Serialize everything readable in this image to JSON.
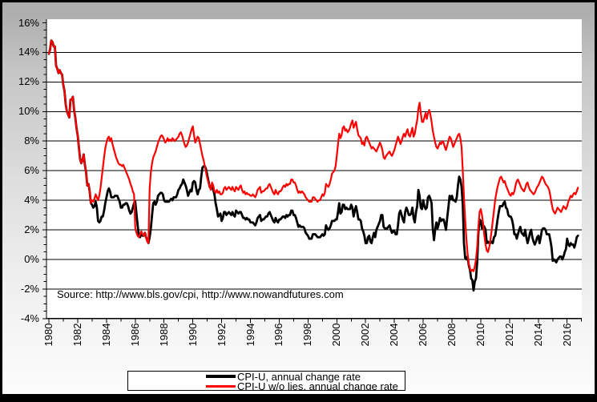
{
  "colors": {
    "series_black": "#000000",
    "series_red": "#ff0000",
    "plot_background": "#ffffff",
    "grid": "#000000",
    "frame_border": "#000000",
    "margin_gradient_top": "#aaaaaa",
    "margin_gradient_bottom": "#fdfdfd"
  },
  "source_note": "Source: http://www.bls.gov/cpi, http://www.nowandfutures.com",
  "chart_data": {
    "type": "line",
    "title": "",
    "xlabel": "",
    "ylabel": "",
    "xlim": [
      1980,
      2017.1
    ],
    "ylim": [
      -4,
      16
    ],
    "grid": "horizontal-only",
    "legend_position": "bottom-center",
    "x_tick_labels": [
      "1980",
      "1982",
      "1984",
      "1986",
      "1988",
      "1990",
      "1992",
      "1994",
      "1996",
      "1998",
      "2000",
      "2002",
      "2004",
      "2006",
      "2008",
      "2010",
      "2012",
      "2014",
      "2016"
    ],
    "x_tick_years": [
      1980,
      1982,
      1984,
      1986,
      1988,
      1990,
      1992,
      1994,
      1996,
      1998,
      2000,
      2002,
      2004,
      2006,
      2008,
      2010,
      2012,
      2014,
      2016
    ],
    "x_minor_tick_every_years": 1,
    "y_tick_labels": [
      "16%",
      "14%",
      "12%",
      "10%",
      "8%",
      "6%",
      "4%",
      "2%",
      "0%",
      "-2%",
      "-4%"
    ],
    "y_tick_values": [
      16,
      14,
      12,
      10,
      8,
      6,
      4,
      2,
      0,
      -2,
      -4
    ],
    "y_minor_tick_every": 0.5,
    "x_start_year": 1980,
    "points_per_year": 12,
    "legend": [
      {
        "label": "CPI-U, annual change rate",
        "color": "#000000"
      },
      {
        "label": "CPI-U w/o lies, annual change rate",
        "color": "#ff0000"
      }
    ],
    "series": [
      {
        "name": "CPI-U, annual change rate",
        "color": "#000000",
        "stroke_width": 2.8,
        "values": [
          13.9,
          14.2,
          14.8,
          14.7,
          14.4,
          14.4,
          13.1,
          12.9,
          12.6,
          12.8,
          12.6,
          12.5,
          11.8,
          11.4,
          10.5,
          10.0,
          9.8,
          9.6,
          10.8,
          10.8,
          11.0,
          10.1,
          9.6,
          8.9,
          8.4,
          7.6,
          6.8,
          6.5,
          6.7,
          7.1,
          6.4,
          5.9,
          5.0,
          5.1,
          4.6,
          3.8,
          3.7,
          3.5,
          3.6,
          3.9,
          3.5,
          2.6,
          2.5,
          2.6,
          2.9,
          2.9,
          3.3,
          3.8,
          4.2,
          4.6,
          4.8,
          4.6,
          4.2,
          4.2,
          4.2,
          4.3,
          4.3,
          4.3,
          4.1,
          3.9,
          3.5,
          3.5,
          3.7,
          3.7,
          3.8,
          3.8,
          3.6,
          3.3,
          3.1,
          3.2,
          3.5,
          3.8,
          3.9,
          3.1,
          2.3,
          1.6,
          1.5,
          1.8,
          1.6,
          1.6,
          1.8,
          1.5,
          1.3,
          1.1,
          1.5,
          2.1,
          3.0,
          3.8,
          3.9,
          3.7,
          3.9,
          4.3,
          4.4,
          4.5,
          4.5,
          4.4,
          4.0,
          3.9,
          3.9,
          3.9,
          3.9,
          4.0,
          4.1,
          4.0,
          4.2,
          4.2,
          4.2,
          4.4,
          4.7,
          4.8,
          5.0,
          5.1,
          5.4,
          5.2,
          5.0,
          4.7,
          4.3,
          4.5,
          4.7,
          4.6,
          5.2,
          5.3,
          5.2,
          4.7,
          4.4,
          4.7,
          4.8,
          5.6,
          6.2,
          6.3,
          6.3,
          6.1,
          5.7,
          5.3,
          4.9,
          4.9,
          5.0,
          4.7,
          4.4,
          3.8,
          3.4,
          2.9,
          3.0,
          3.1,
          2.6,
          2.8,
          3.2,
          3.2,
          3.0,
          3.1,
          3.2,
          3.1,
          3.0,
          3.2,
          3.0,
          2.9,
          3.3,
          3.2,
          3.1,
          3.2,
          3.2,
          3.0,
          2.8,
          2.8,
          2.7,
          2.8,
          2.7,
          2.7,
          2.5,
          2.5,
          2.5,
          2.4,
          2.3,
          2.5,
          2.8,
          2.9,
          3.0,
          2.6,
          2.7,
          2.7,
          2.8,
          2.9,
          2.9,
          3.1,
          3.2,
          3.0,
          2.8,
          2.6,
          2.5,
          2.8,
          2.6,
          2.5,
          2.7,
          2.7,
          2.8,
          2.9,
          2.9,
          2.8,
          3.0,
          2.9,
          3.0,
          3.0,
          3.3,
          3.3,
          3.0,
          3.0,
          2.8,
          2.5,
          2.2,
          2.3,
          2.2,
          2.2,
          2.2,
          2.1,
          1.8,
          1.7,
          1.6,
          1.4,
          1.4,
          1.4,
          1.7,
          1.7,
          1.7,
          1.6,
          1.5,
          1.5,
          1.5,
          1.6,
          1.7,
          1.6,
          1.7,
          2.3,
          2.1,
          2.0,
          2.1,
          2.3,
          2.6,
          2.6,
          2.6,
          2.7,
          2.7,
          3.2,
          3.8,
          3.1,
          3.2,
          3.7,
          3.7,
          3.4,
          3.5,
          3.4,
          3.4,
          3.4,
          3.7,
          3.5,
          2.9,
          3.3,
          3.6,
          3.2,
          2.7,
          2.7,
          2.6,
          2.1,
          1.9,
          1.6,
          1.1,
          1.1,
          1.5,
          1.6,
          1.2,
          1.1,
          1.5,
          1.8,
          1.5,
          2.0,
          2.2,
          2.4,
          2.6,
          3.0,
          3.0,
          2.2,
          2.1,
          2.1,
          2.1,
          2.2,
          2.3,
          2.0,
          1.8,
          1.9,
          1.9,
          1.7,
          1.7,
          2.3,
          3.1,
          3.3,
          3.0,
          2.7,
          2.5,
          3.2,
          3.5,
          3.3,
          3.0,
          3.0,
          3.1,
          3.5,
          2.8,
          2.5,
          3.2,
          3.6,
          4.7,
          4.3,
          3.5,
          3.4,
          4.0,
          3.6,
          3.4,
          3.5,
          4.2,
          4.3,
          4.1,
          3.8,
          2.1,
          1.3,
          2.0,
          2.5,
          2.1,
          2.4,
          2.8,
          2.6,
          2.7,
          2.7,
          2.4,
          2.0,
          2.8,
          3.5,
          4.3,
          4.1,
          4.3,
          4.0,
          4.0,
          3.9,
          4.2,
          5.0,
          5.6,
          5.4,
          4.9,
          3.7,
          1.1,
          0.1,
          0.0,
          0.2,
          -0.4,
          -0.7,
          -1.3,
          -1.4,
          -2.1,
          -1.5,
          -1.3,
          -0.2,
          1.8,
          2.7,
          2.6,
          2.1,
          2.3,
          2.2,
          2.0,
          1.1,
          1.2,
          1.1,
          1.1,
          1.2,
          1.1,
          1.5,
          1.6,
          2.1,
          2.7,
          3.2,
          3.6,
          3.6,
          3.6,
          3.8,
          3.9,
          3.5,
          3.4,
          3.0,
          2.9,
          2.9,
          2.7,
          2.3,
          1.7,
          1.7,
          1.4,
          1.7,
          2.0,
          2.2,
          1.8,
          1.7,
          1.6,
          2.0,
          1.5,
          1.1,
          1.4,
          1.8,
          2.0,
          1.5,
          1.2,
          1.0,
          1.2,
          1.5,
          1.6,
          1.1,
          1.5,
          2.0,
          2.1,
          2.1,
          2.0,
          1.7,
          1.7,
          1.7,
          1.3,
          0.8,
          -0.1,
          0.0,
          -0.1,
          -0.2,
          0.0,
          0.1,
          0.2,
          0.2,
          0.0,
          0.2,
          0.5,
          0.7,
          1.4,
          1.0,
          0.9,
          1.1,
          1.0,
          1.0,
          0.8,
          1.1,
          1.5,
          1.6
        ]
      },
      {
        "name": "CPI-U w/o lies, annual change rate",
        "color": "#ff0000",
        "stroke_width": 2.2,
        "values": [
          13.9,
          14.2,
          14.8,
          14.7,
          14.4,
          14.4,
          13.1,
          12.9,
          12.6,
          12.8,
          12.6,
          12.5,
          11.8,
          11.4,
          10.5,
          10.0,
          9.8,
          9.6,
          10.8,
          10.8,
          11.0,
          10.1,
          9.6,
          8.9,
          8.4,
          7.6,
          6.8,
          6.5,
          6.7,
          7.1,
          6.4,
          5.9,
          5.0,
          5.1,
          4.6,
          3.8,
          4.0,
          3.9,
          4.1,
          4.4,
          4.2,
          4.0,
          4.3,
          4.8,
          5.5,
          6.2,
          6.9,
          7.5,
          7.9,
          8.2,
          8.3,
          8.0,
          8.2,
          7.8,
          7.5,
          7.2,
          6.9,
          6.7,
          6.5,
          6.4,
          6.4,
          6.3,
          6.4,
          6.2,
          6.0,
          5.8,
          5.6,
          5.4,
          5.1,
          4.9,
          4.6,
          4.4,
          2.1,
          1.8,
          1.6,
          1.5,
          1.7,
          1.9,
          1.7,
          1.6,
          1.8,
          1.5,
          1.2,
          1.1,
          4.8,
          5.9,
          6.5,
          6.9,
          7.1,
          7.3,
          7.6,
          7.9,
          8.1,
          8.3,
          8.4,
          8.3,
          8.1,
          7.9,
          8.0,
          8.2,
          8.0,
          8.1,
          8.0,
          8.2,
          8.1,
          8.0,
          8.1,
          8.2,
          8.3,
          8.5,
          8.6,
          8.4,
          8.1,
          7.8,
          7.6,
          7.7,
          7.9,
          8.2,
          8.5,
          8.8,
          9.0,
          8.4,
          7.9,
          8.1,
          8.3,
          8.2,
          7.8,
          7.4,
          7.0,
          6.7,
          6.3,
          5.9,
          5.5,
          5.2,
          4.9,
          4.7,
          5.2,
          5.0,
          4.6,
          4.5,
          4.7,
          4.5,
          4.6,
          4.4,
          4.4,
          4.5,
          4.8,
          4.9,
          4.7,
          4.8,
          4.9,
          4.8,
          4.7,
          4.9,
          4.7,
          4.6,
          4.9,
          4.8,
          4.7,
          4.9,
          5.0,
          4.7,
          4.5,
          4.6,
          4.4,
          4.5,
          4.4,
          4.4,
          4.3,
          4.3,
          4.4,
          4.3,
          4.2,
          4.4,
          4.7,
          4.8,
          4.9,
          4.5,
          4.6,
          4.6,
          4.7,
          4.8,
          4.8,
          5.0,
          5.1,
          4.9,
          4.7,
          4.5,
          4.4,
          4.7,
          4.5,
          4.4,
          4.6,
          4.6,
          4.7,
          4.9,
          5.0,
          4.9,
          5.1,
          5.0,
          5.1,
          5.1,
          5.4,
          5.4,
          5.2,
          5.2,
          5.0,
          4.7,
          4.5,
          4.6,
          4.5,
          4.6,
          4.5,
          4.4,
          4.2,
          4.1,
          4.0,
          3.9,
          3.9,
          3.9,
          4.2,
          4.2,
          4.1,
          4.0,
          3.9,
          4.0,
          4.0,
          4.2,
          4.4,
          4.3,
          4.5,
          5.1,
          5.0,
          4.9,
          5.1,
          5.4,
          5.8,
          5.9,
          6.0,
          6.3,
          7.0,
          7.8,
          8.5,
          8.2,
          8.4,
          8.9,
          9.0,
          8.7,
          8.8,
          8.6,
          8.7,
          8.9,
          9.2,
          9.4,
          8.9,
          9.1,
          9.3,
          8.8,
          8.4,
          8.3,
          8.2,
          7.8,
          7.9,
          7.7,
          8.2,
          8.3,
          8.1,
          7.9,
          7.7,
          7.5,
          7.6,
          7.5,
          7.4,
          7.3,
          7.5,
          7.7,
          7.9,
          7.7,
          7.4,
          6.9,
          6.8,
          7.0,
          7.1,
          7.2,
          7.3,
          7.1,
          7.0,
          7.2,
          7.4,
          7.7,
          8.0,
          8.3,
          8.1,
          7.8,
          8.0,
          8.3,
          8.5,
          8.3,
          8.6,
          8.8,
          8.4,
          8.3,
          8.6,
          8.9,
          8.3,
          8.5,
          9.0,
          9.4,
          10.2,
          10.6,
          9.9,
          9.3,
          9.3,
          9.6,
          9.9,
          9.5,
          9.9,
          10.1,
          9.8,
          9.3,
          8.7,
          8.3,
          7.9,
          7.6,
          7.5,
          7.7,
          7.9,
          7.8,
          8.0,
          7.9,
          7.6,
          7.4,
          7.7,
          8.0,
          8.3,
          8.2,
          7.9,
          7.6,
          7.8,
          8.0,
          8.2,
          8.4,
          8.5,
          8.2,
          7.6,
          6.0,
          4.2,
          2.7,
          1.4,
          0.4,
          -0.3,
          -0.6,
          -0.8,
          -0.7,
          -0.8,
          -0.5,
          0.0,
          0.8,
          2.2,
          3.2,
          3.4,
          3.0,
          2.4,
          1.6,
          1.0,
          0.6,
          0.5,
          0.8,
          1.3,
          1.9,
          2.6,
          3.3,
          4.0,
          4.5,
          4.9,
          5.2,
          5.5,
          5.6,
          5.4,
          5.2,
          5.3,
          5.0,
          4.8,
          4.6,
          4.4,
          4.3,
          4.5,
          4.4,
          4.6,
          5.0,
          5.3,
          5.4,
          5.2,
          5.0,
          4.8,
          4.7,
          4.6,
          4.8,
          5.1,
          5.2,
          4.9,
          4.7,
          4.6,
          4.5,
          4.4,
          4.5,
          4.7,
          4.9,
          5.0,
          5.2,
          5.4,
          5.6,
          5.5,
          5.3,
          5.1,
          5.0,
          4.9,
          4.7,
          4.3,
          3.8,
          3.4,
          3.2,
          3.1,
          3.3,
          3.5,
          3.4,
          3.3,
          3.2,
          3.4,
          3.6,
          3.5,
          3.4,
          3.6,
          3.9,
          4.1,
          4.3,
          4.2,
          4.4,
          4.5,
          4.4,
          4.6,
          4.85
        ]
      }
    ]
  }
}
